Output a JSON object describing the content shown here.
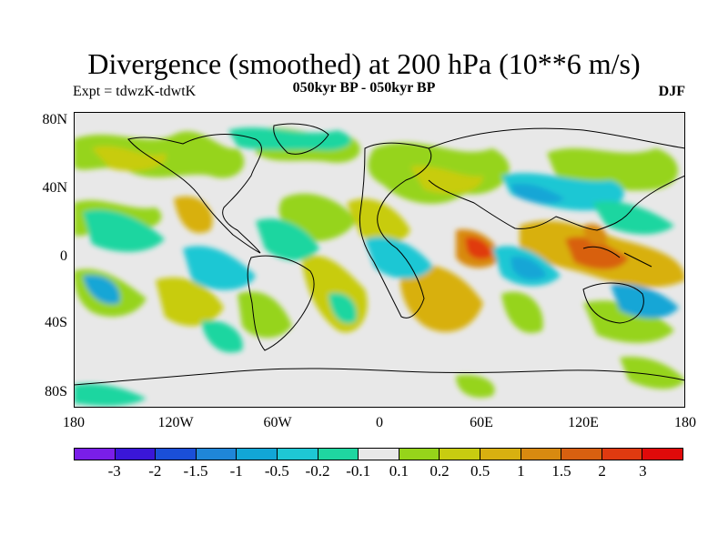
{
  "title": "Divergence (smoothed) at 200 hPa (10**6 m/s)",
  "subtitle_left": "Expt = tdwzK-tdwtK",
  "subtitle_center": "050kyr BP - 050kyr BP",
  "subtitle_right": "DJF",
  "lat_labels": [
    "80N",
    "40N",
    "0",
    "40S",
    "80S"
  ],
  "lon_labels": [
    "180",
    "120W",
    "60W",
    "0",
    "60E",
    "120E",
    "180"
  ],
  "colorbar": {
    "colors": [
      "#7a1ee8",
      "#3a16d8",
      "#1a4fd8",
      "#1f86d8",
      "#12a6d6",
      "#1ec7d4",
      "#1fd6a0",
      "#e8e8e8",
      "#96d41a",
      "#c8cc10",
      "#d8b010",
      "#d88a10",
      "#d86010",
      "#e03a10",
      "#e00a0a"
    ],
    "labels": [
      "-3",
      "-2",
      "-1.5",
      "-1",
      "-0.5",
      "-0.2",
      "-0.1",
      "0.1",
      "0.2",
      "0.5",
      "1",
      "1.5",
      "2",
      "3"
    ]
  }
}
